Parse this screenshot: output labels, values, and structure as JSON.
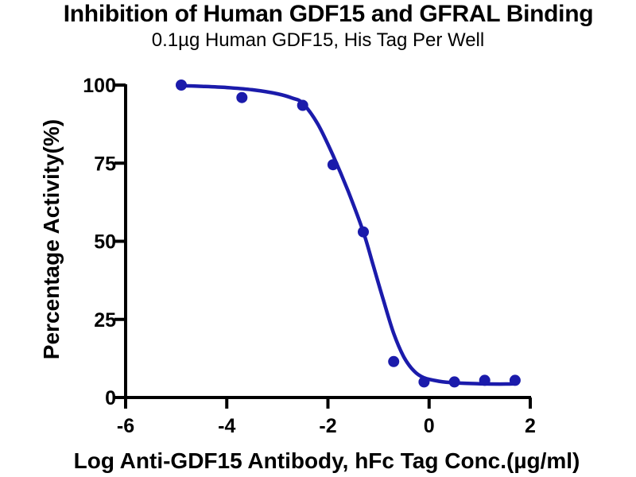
{
  "figure": {
    "background": "#FFFFFF"
  },
  "chart_data": {
    "type": "scatter",
    "title": "Inhibition of Human GDF15 and GFRAL Binding",
    "subtitle": "0.1µg Human GDF15, His Tag Per Well",
    "xlabel": "Log Anti-GDF15 Antibody, hFc Tag Conc.(µg/ml)",
    "ylabel": "Percentage Activity(%)",
    "xlim": [
      -6,
      2
    ],
    "ylim": [
      0,
      100
    ],
    "x_ticks": [
      -6,
      -4,
      -2,
      0,
      2
    ],
    "y_ticks": [
      0,
      25,
      50,
      75,
      100
    ],
    "grid": false,
    "legend": "none",
    "axis_color": "#000000",
    "series": [
      {
        "marker": "circle",
        "color": "#1B1BAB",
        "points": {
          "x": [
            -4.9,
            -3.7,
            -2.5,
            -1.9,
            -1.3,
            -0.7,
            -0.1,
            0.5,
            1.1,
            1.7
          ],
          "y": [
            100,
            96,
            93.5,
            74.5,
            53,
            11.5,
            5,
            5,
            5.5,
            5.5
          ]
        },
        "fit_curve": {
          "x": [
            -4.93,
            -4.5,
            -4.0,
            -3.5,
            -3.0,
            -2.7,
            -2.5,
            -2.2,
            -1.9,
            -1.6,
            -1.3,
            -1.1,
            -0.9,
            -0.7,
            -0.5,
            -0.3,
            -0.1,
            0.2,
            0.5,
            1.0,
            1.4,
            1.72
          ],
          "y": [
            99.8,
            99.6,
            99.2,
            98.5,
            97.2,
            95.8,
            94.2,
            87.5,
            77.5,
            66.0,
            53.0,
            42.0,
            31.0,
            20.5,
            13.0,
            8.5,
            6.3,
            5.2,
            4.7,
            4.4,
            4.3,
            4.4
          ]
        }
      }
    ]
  }
}
